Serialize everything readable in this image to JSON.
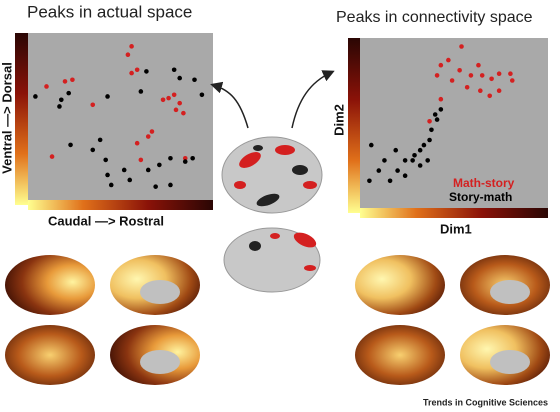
{
  "chart_data": [
    {
      "type": "scatter",
      "title": "Peaks in actual space",
      "xlabel": "Caudal —> Rostral",
      "ylabel": "Ventral —> Dorsal",
      "xlim": [
        0,
        100
      ],
      "ylim": [
        0,
        100
      ],
      "series": [
        {
          "color": "#d42020",
          "x": [
            10,
            20,
            24,
            35,
            54,
            56,
            59,
            56,
            73,
            76,
            79,
            82,
            80,
            84,
            67,
            65,
            59,
            13,
            61,
            85
          ],
          "y": [
            68,
            71,
            72,
            57,
            87,
            76,
            78,
            92,
            60,
            61,
            63,
            58,
            54,
            52,
            41,
            38,
            34,
            26,
            24,
            25
          ]
        },
        {
          "color": "#000000",
          "x": [
            4,
            18,
            22,
            17,
            43,
            64,
            79,
            82,
            90,
            94,
            61,
            23,
            35,
            42,
            43,
            45,
            52,
            55,
            65,
            71,
            77,
            85,
            89,
            39,
            69,
            77
          ],
          "y": [
            62,
            60,
            64,
            56,
            62,
            77,
            78,
            73,
            72,
            63,
            65,
            33,
            30,
            24,
            15,
            9,
            18,
            12,
            18,
            21,
            25,
            23,
            25,
            36,
            8,
            9
          ]
        }
      ]
    },
    {
      "type": "scatter",
      "title": "Peaks in connectivity space",
      "xlabel": "Dim1",
      "ylabel": "Dim2",
      "xlim": [
        0,
        100
      ],
      "ylim": [
        0,
        100
      ],
      "series": [
        {
          "name": "Math-story",
          "color": "#d42020",
          "x": [
            54,
            47,
            43,
            41,
            49,
            53,
            59,
            63,
            65,
            70,
            74,
            80,
            81,
            74,
            69,
            64,
            57,
            43,
            37
          ],
          "y": [
            95,
            87,
            84,
            78,
            75,
            81,
            78,
            84,
            78,
            76,
            79,
            79,
            75,
            69,
            66,
            69,
            71,
            64,
            51
          ]
        },
        {
          "name": "Story-math",
          "color": "#000000",
          "x": [
            5,
            10,
            16,
            20,
            24,
            29,
            32,
            34,
            37,
            38,
            41,
            43,
            40,
            24,
            19,
            13,
            6,
            28,
            32,
            36
          ],
          "y": [
            16,
            22,
            16,
            22,
            28,
            31,
            34,
            37,
            40,
            46,
            52,
            58,
            55,
            19,
            34,
            28,
            37,
            28,
            25,
            28
          ]
        }
      ]
    }
  ],
  "source": "Trends in Cognitive Sciences"
}
